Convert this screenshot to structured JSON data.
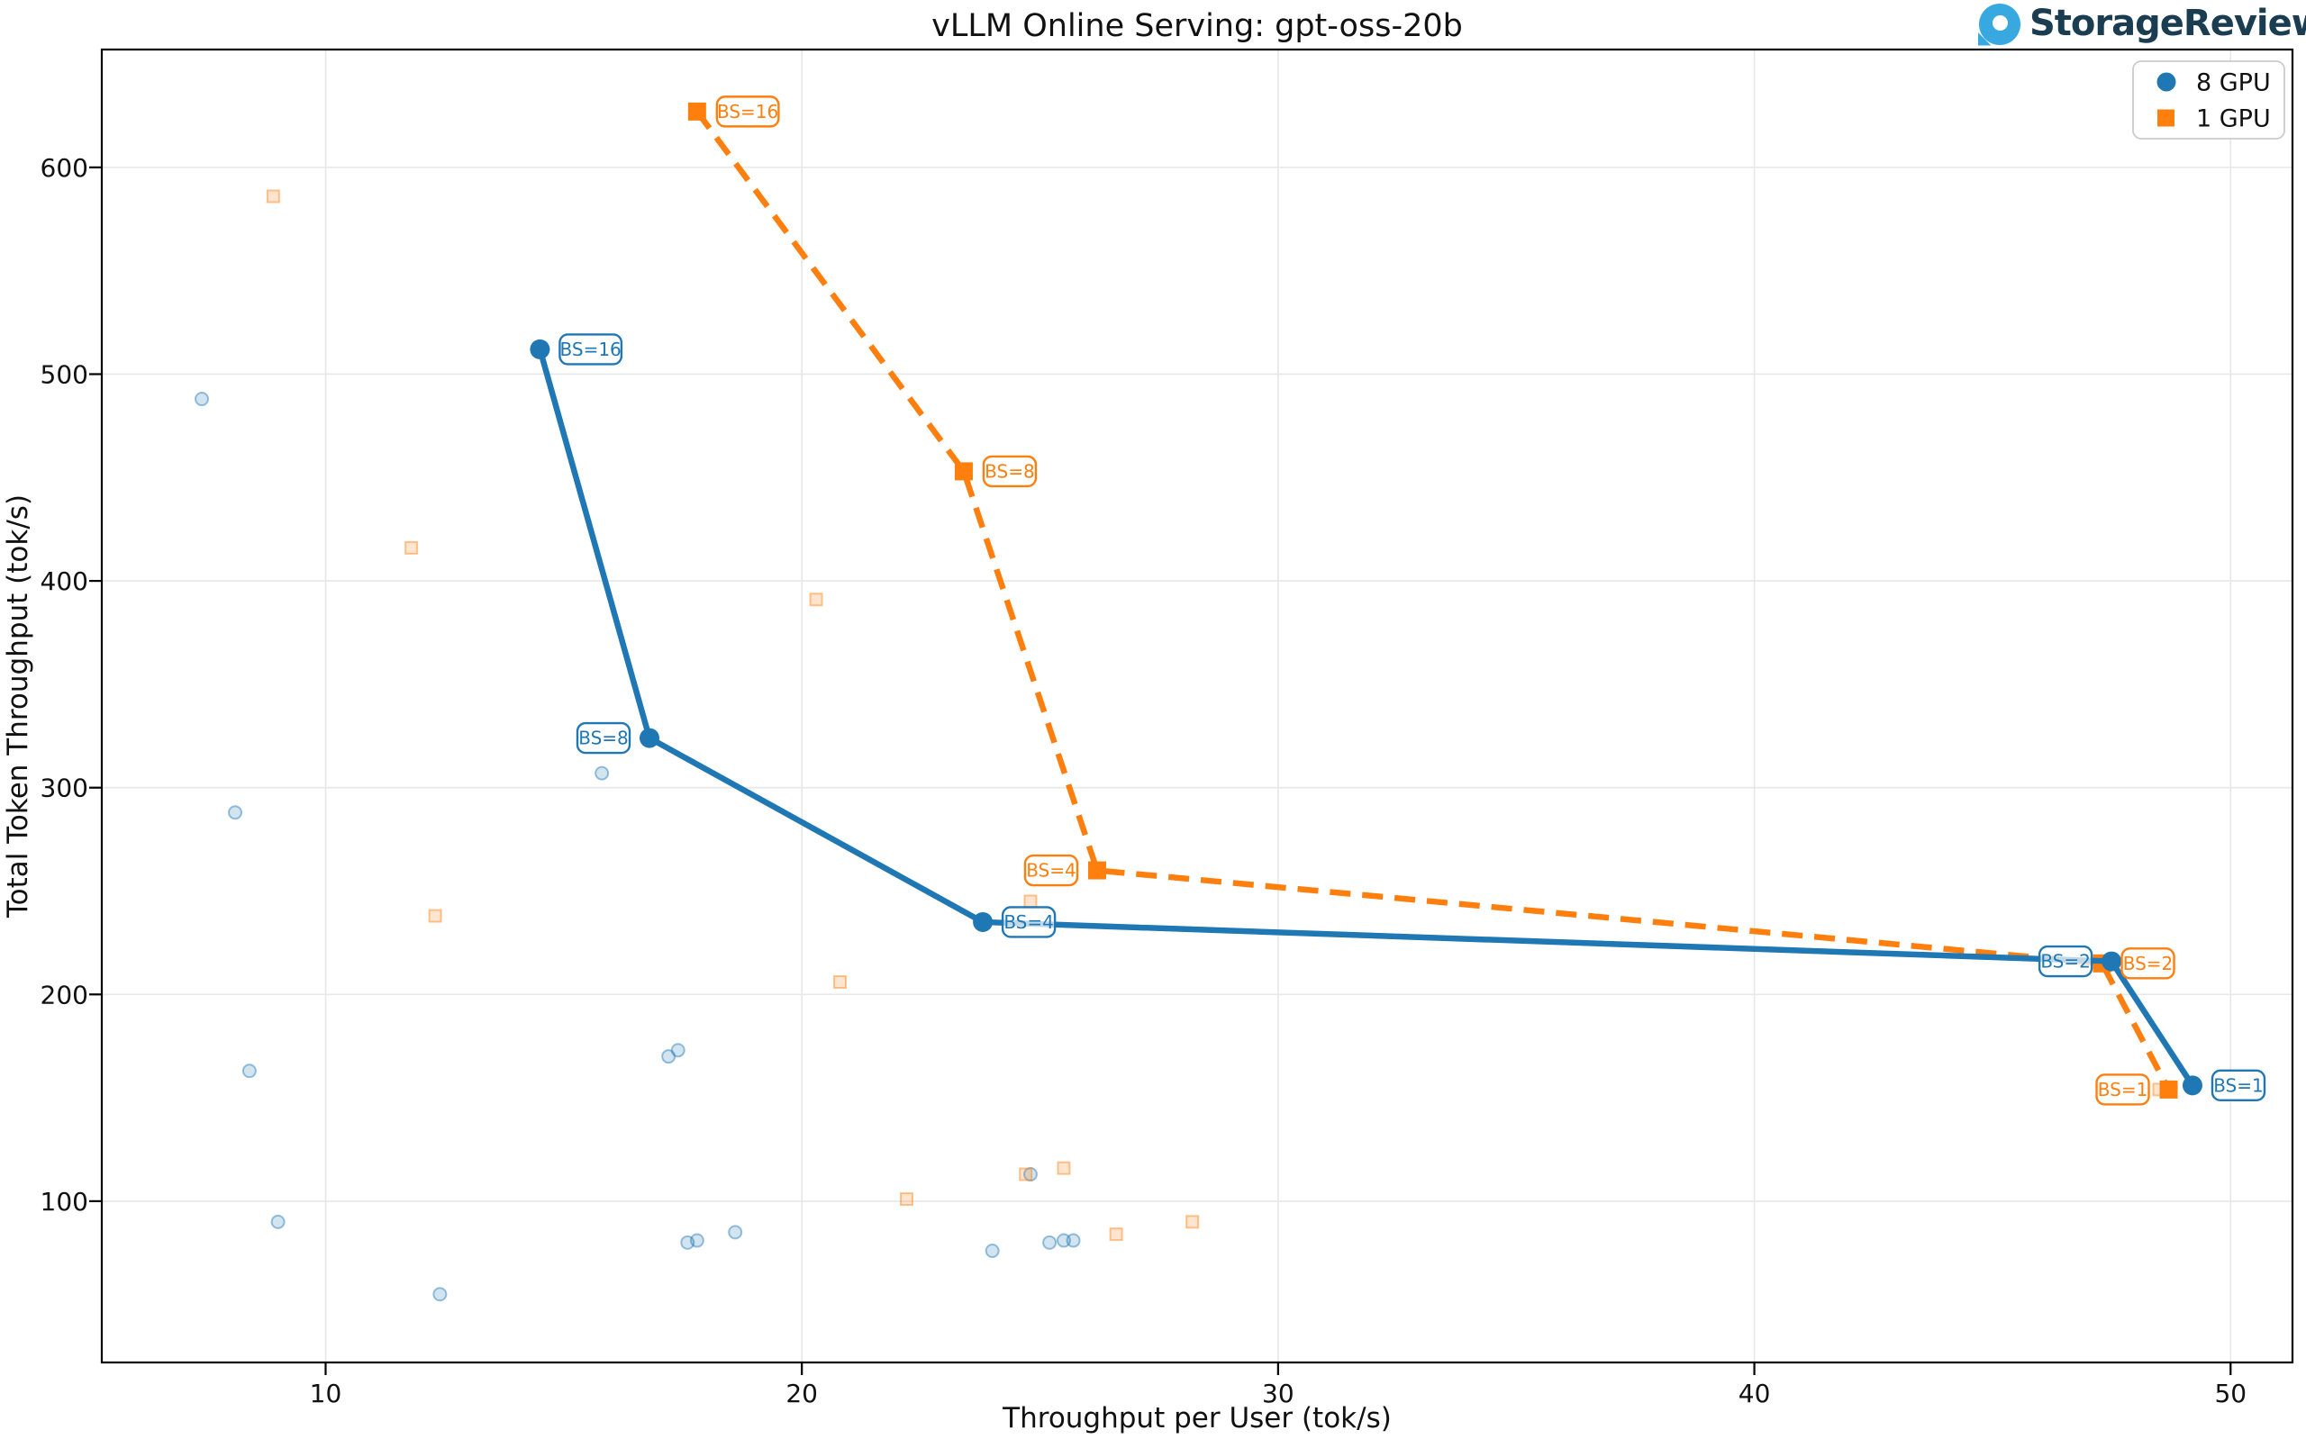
{
  "header": {
    "title": "vLLM Online Serving: gpt-oss-20b",
    "logo_text": "StorageReview"
  },
  "chart_data": {
    "type": "line",
    "title": "vLLM Online Serving: gpt-oss-20b",
    "xlabel": "Throughput per User (tok/s)",
    "ylabel": "Total Token Throughput (tok/s)",
    "xlim": [
      5.3,
      51.3
    ],
    "ylim": [
      22,
      657
    ],
    "xticks": [
      10,
      20,
      30,
      40,
      50
    ],
    "yticks": [
      100,
      200,
      300,
      400,
      500,
      600
    ],
    "grid": true,
    "colors": {
      "blue": "#1f77b4",
      "orange": "#ff7f0e",
      "grid": "#e7e7e7",
      "spine": "#000000"
    },
    "legend": {
      "position": "top-right",
      "entries": [
        {
          "label": "8 GPU",
          "color": "#1f77b4",
          "marker": "circle"
        },
        {
          "label": "1 GPU",
          "color": "#ff7f0e",
          "marker": "square"
        }
      ]
    },
    "series": [
      {
        "name": "8 GPU",
        "color": "#1f77b4",
        "line": "solid",
        "marker": "circle",
        "points": [
          {
            "x": 14.5,
            "y": 512,
            "label": "BS=16",
            "label_side": "right"
          },
          {
            "x": 16.8,
            "y": 324,
            "label": "BS=8",
            "label_side": "left"
          },
          {
            "x": 23.8,
            "y": 235,
            "label": "BS=4",
            "label_side": "right"
          },
          {
            "x": 47.5,
            "y": 216,
            "label": "BS=2",
            "label_side": "left"
          },
          {
            "x": 49.2,
            "y": 156,
            "label": "BS=1",
            "label_side": "right"
          }
        ]
      },
      {
        "name": "1 GPU",
        "color": "#ff7f0e",
        "line": "dashed",
        "marker": "square",
        "points": [
          {
            "x": 17.8,
            "y": 627,
            "label": "BS=16",
            "label_side": "right"
          },
          {
            "x": 23.4,
            "y": 453,
            "label": "BS=8",
            "label_side": "right"
          },
          {
            "x": 26.2,
            "y": 260,
            "label": "BS=4",
            "label_side": "left"
          },
          {
            "x": 47.3,
            "y": 215,
            "label": "BS=2",
            "label_side": "right"
          },
          {
            "x": 48.7,
            "y": 154,
            "label": "BS=1",
            "label_side": "left"
          }
        ]
      }
    ],
    "background_scatter": [
      {
        "series": "8 GPU",
        "color": "#1f77b4",
        "marker": "circle",
        "points": [
          [
            7.4,
            488
          ],
          [
            8.1,
            288
          ],
          [
            8.4,
            163
          ],
          [
            9.0,
            90
          ],
          [
            12.4,
            55
          ],
          [
            15.8,
            307
          ],
          [
            17.2,
            170
          ],
          [
            17.4,
            173
          ],
          [
            17.6,
            80
          ],
          [
            17.8,
            81
          ],
          [
            18.6,
            85
          ],
          [
            24.0,
            76
          ],
          [
            24.8,
            113
          ],
          [
            25.2,
            80
          ],
          [
            25.5,
            81
          ],
          [
            25.7,
            81
          ]
        ]
      },
      {
        "series": "1 GPU",
        "color": "#ff7f0e",
        "marker": "square",
        "points": [
          [
            8.9,
            586
          ],
          [
            11.8,
            416
          ],
          [
            12.3,
            238
          ],
          [
            20.3,
            391
          ],
          [
            20.8,
            206
          ],
          [
            22.2,
            101
          ],
          [
            24.7,
            113
          ],
          [
            24.8,
            245
          ],
          [
            25.5,
            116
          ],
          [
            26.6,
            84
          ],
          [
            28.2,
            90
          ],
          [
            48.5,
            154
          ]
        ]
      }
    ]
  }
}
